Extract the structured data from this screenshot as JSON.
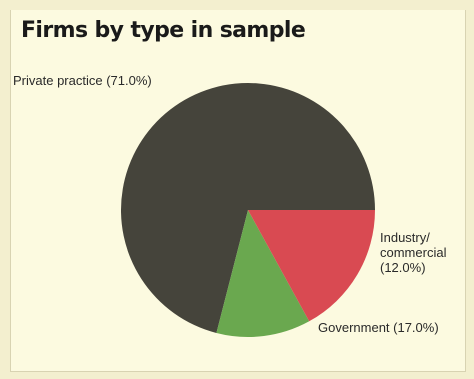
{
  "chart_data": {
    "type": "pie",
    "title": "Firms by type in sample",
    "slices": [
      {
        "label": [
          "Private practice (71.0%)"
        ],
        "value": 71.0,
        "color": "#45443b"
      },
      {
        "label": [
          "Industry/",
          "commercial",
          "(12.0%)"
        ],
        "value": 12.0,
        "color": "#6aa84f"
      },
      {
        "label": [
          "Government (17.0%)"
        ],
        "value": 17.0,
        "color": "#d94a52"
      }
    ]
  }
}
